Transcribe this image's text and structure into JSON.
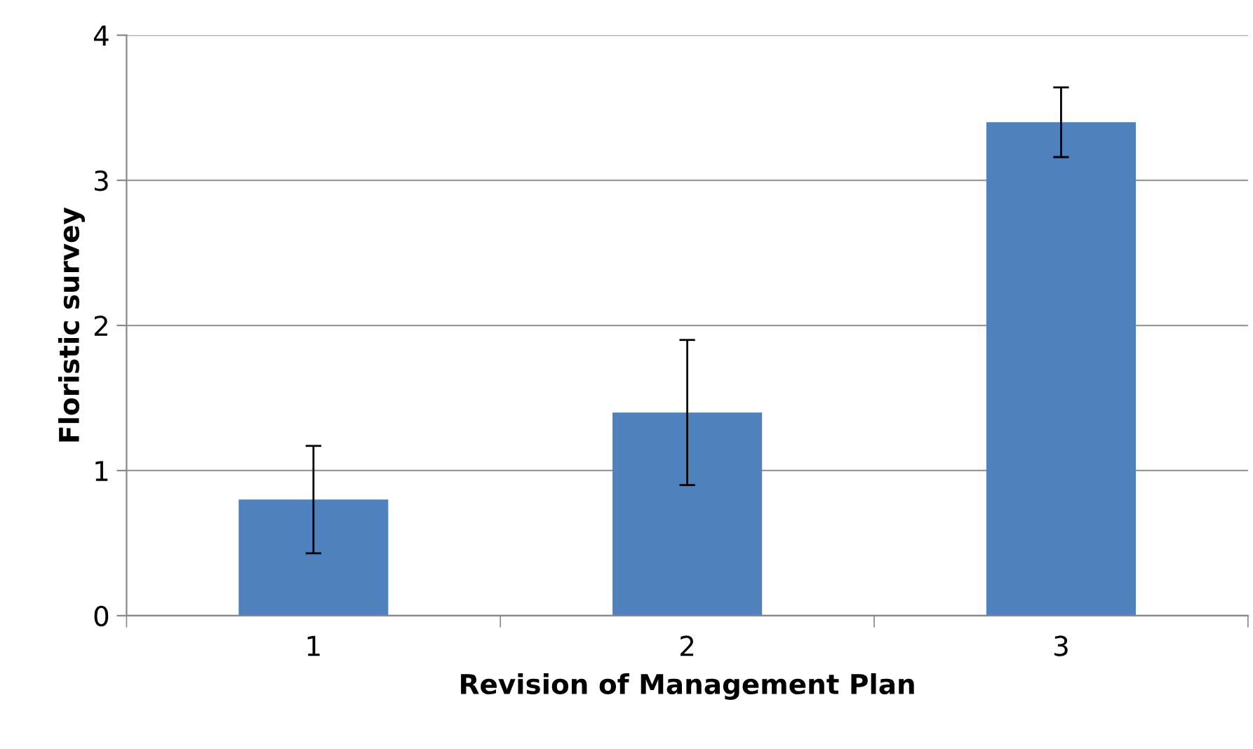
{
  "chart_data": {
    "type": "bar",
    "xlabel": "Revision of Management Plan",
    "ylabel": "Floristic survey",
    "categories": [
      "1",
      "2",
      "3"
    ],
    "values": [
      0.8,
      1.4,
      3.4
    ],
    "errors": [
      0.37,
      0.5,
      0.24
    ],
    "color": "#4f81bd",
    "ylim": [
      0,
      4
    ],
    "yticks": [
      0,
      1,
      2,
      3,
      4
    ],
    "grid": "y"
  }
}
